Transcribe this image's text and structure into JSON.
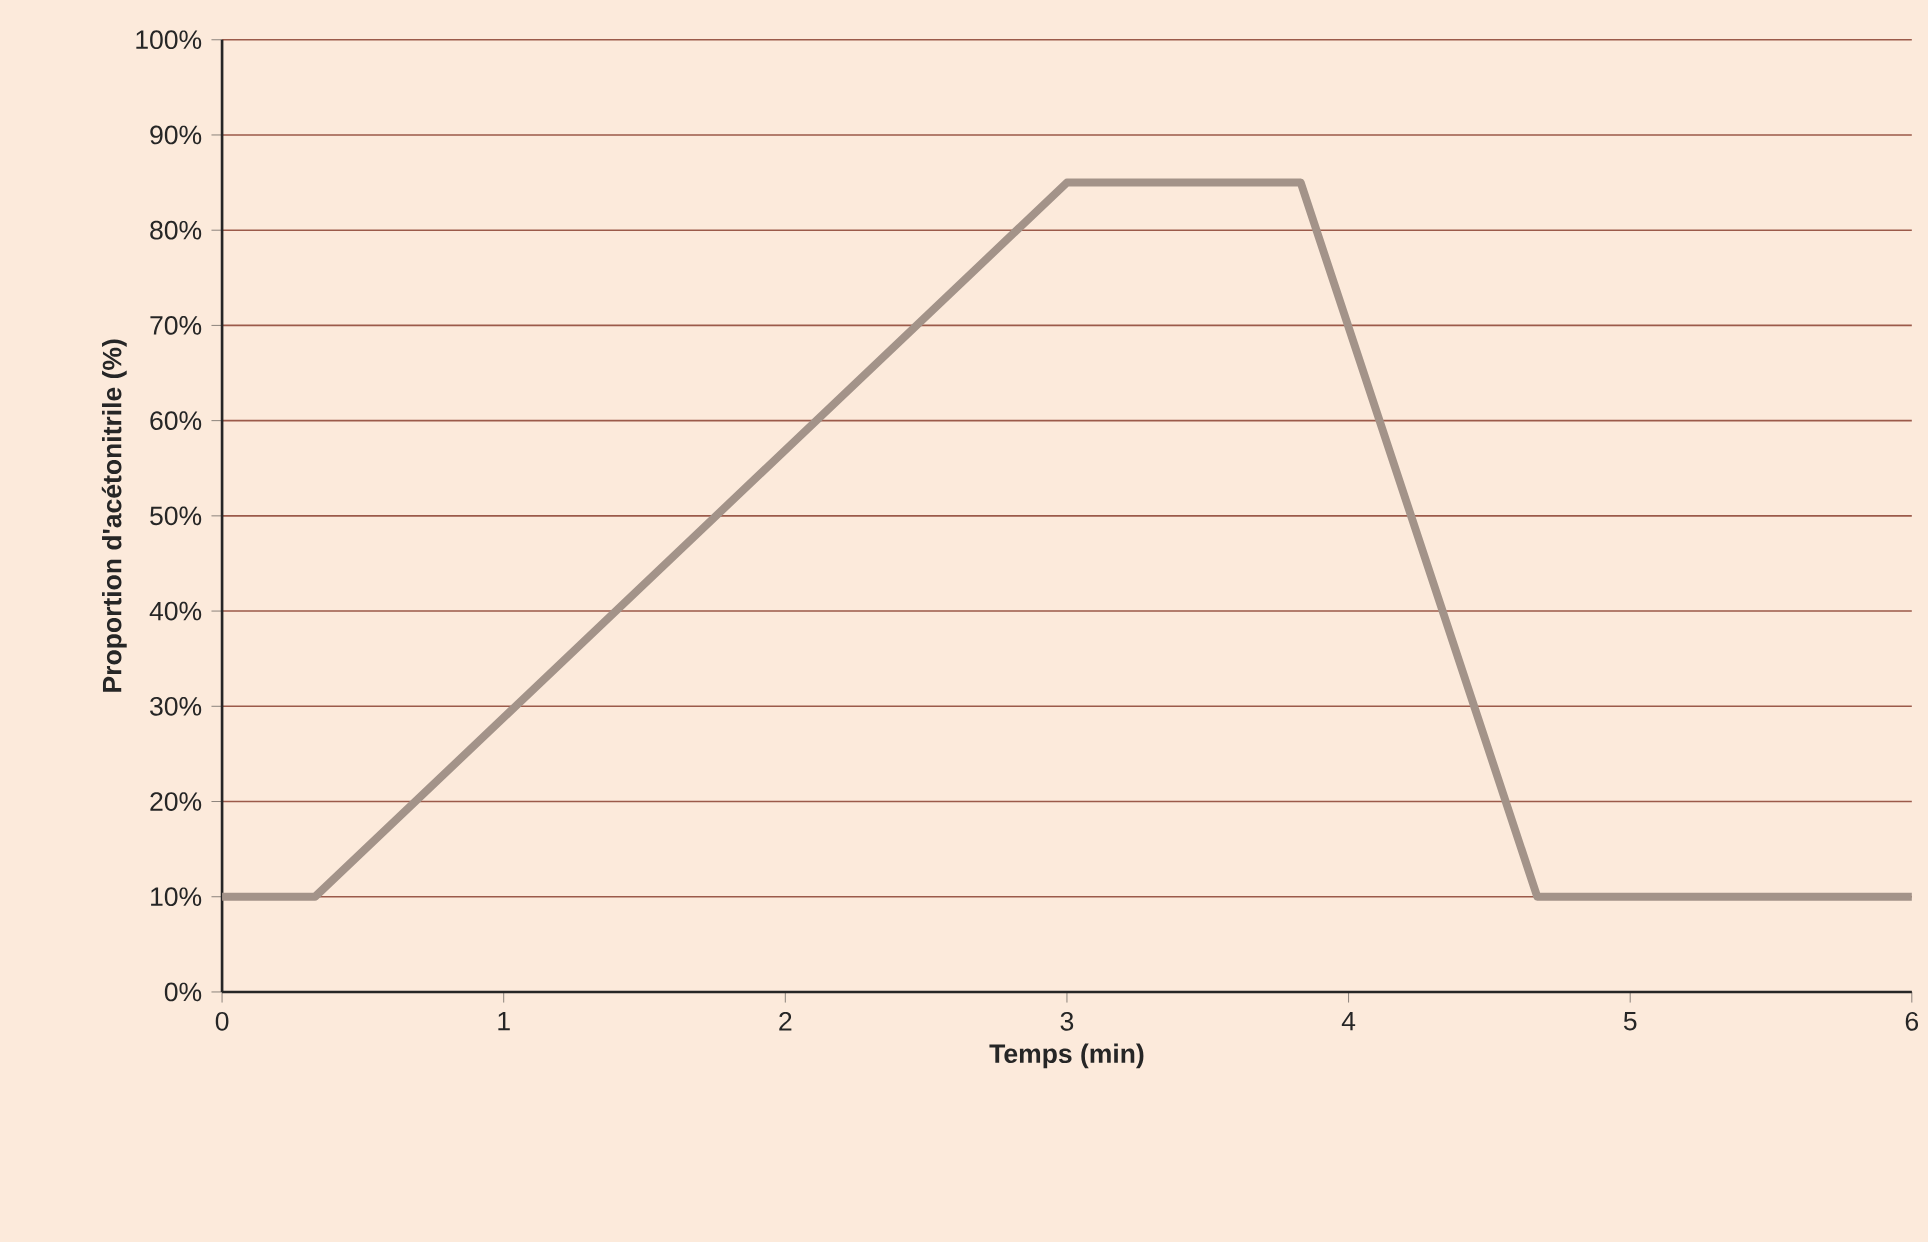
{
  "chart_data": {
    "type": "line",
    "xlabel": "Temps (min)",
    "ylabel": "Proportion d'acétonitrile (%)",
    "x": [
      0,
      0.33,
      3,
      3.83,
      4.67,
      6
    ],
    "series": [
      {
        "color": "#a39389",
        "values": [
          10,
          10,
          85,
          85,
          10,
          10
        ]
      }
    ],
    "xlim": [
      0,
      6
    ],
    "xticks": [
      0,
      1,
      2,
      3,
      4,
      5,
      6
    ],
    "ylim": [
      0,
      100
    ],
    "yticks": [
      {
        "value": 0,
        "label": "0%"
      },
      {
        "value": 10,
        "label": "10%"
      },
      {
        "value": 20,
        "label": "20%"
      },
      {
        "value": 30,
        "label": "30%"
      },
      {
        "value": 40,
        "label": "40%"
      },
      {
        "value": 50,
        "label": "50%"
      },
      {
        "value": 60,
        "label": "60%"
      },
      {
        "value": 70,
        "label": "70%"
      },
      {
        "value": 80,
        "label": "80%"
      },
      {
        "value": 90,
        "label": "90%"
      },
      {
        "value": 100,
        "label": "100%"
      }
    ],
    "grid": "y",
    "marker": "none",
    "line_style": "solid"
  }
}
